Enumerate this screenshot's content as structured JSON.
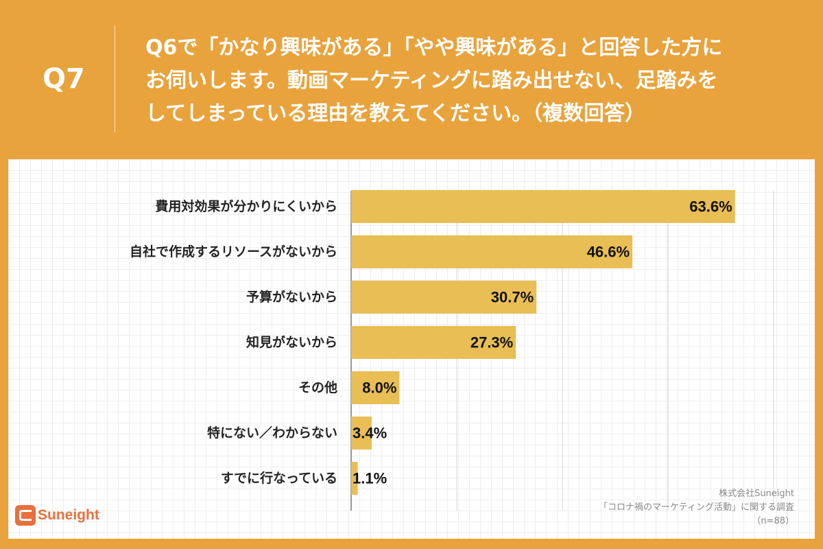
{
  "header": {
    "qnum": "Q7",
    "question_lines": [
      "Q6で「かなり興味がある」「やや興味がある」と回答した方に",
      "お伺いします。動画マーケティングに踏み出せない、足踏みを",
      "してしまっている理由を教えてください。（複数回答）"
    ]
  },
  "chart_data": {
    "type": "bar",
    "orientation": "horizontal",
    "categories": [
      "費用対効果が分かりにくいから",
      "自社で作成するリソースがないから",
      "予算がないから",
      "知見がないから",
      "その他",
      "特にない／わからない",
      "すでに行なっている"
    ],
    "values": [
      63.6,
      46.6,
      30.7,
      27.3,
      8.0,
      3.4,
      1.1
    ],
    "value_labels": [
      "63.6%",
      "46.6%",
      "30.7%",
      "27.3%",
      "8.0%",
      "3.4%",
      "1.1%"
    ],
    "unit": "%",
    "xlim": [
      0,
      70
    ],
    "bar_color": "#E8BE55",
    "grid": true
  },
  "logo": {
    "text": "Suneight"
  },
  "footer": {
    "company": "株式会社Suneight",
    "survey": "「コロナ禍のマーケティング活動」に関する調査",
    "sample": "（n=88）"
  },
  "colors": {
    "background": "#E8A33C",
    "bar": "#E8BE55",
    "logo": "#E8703C"
  }
}
